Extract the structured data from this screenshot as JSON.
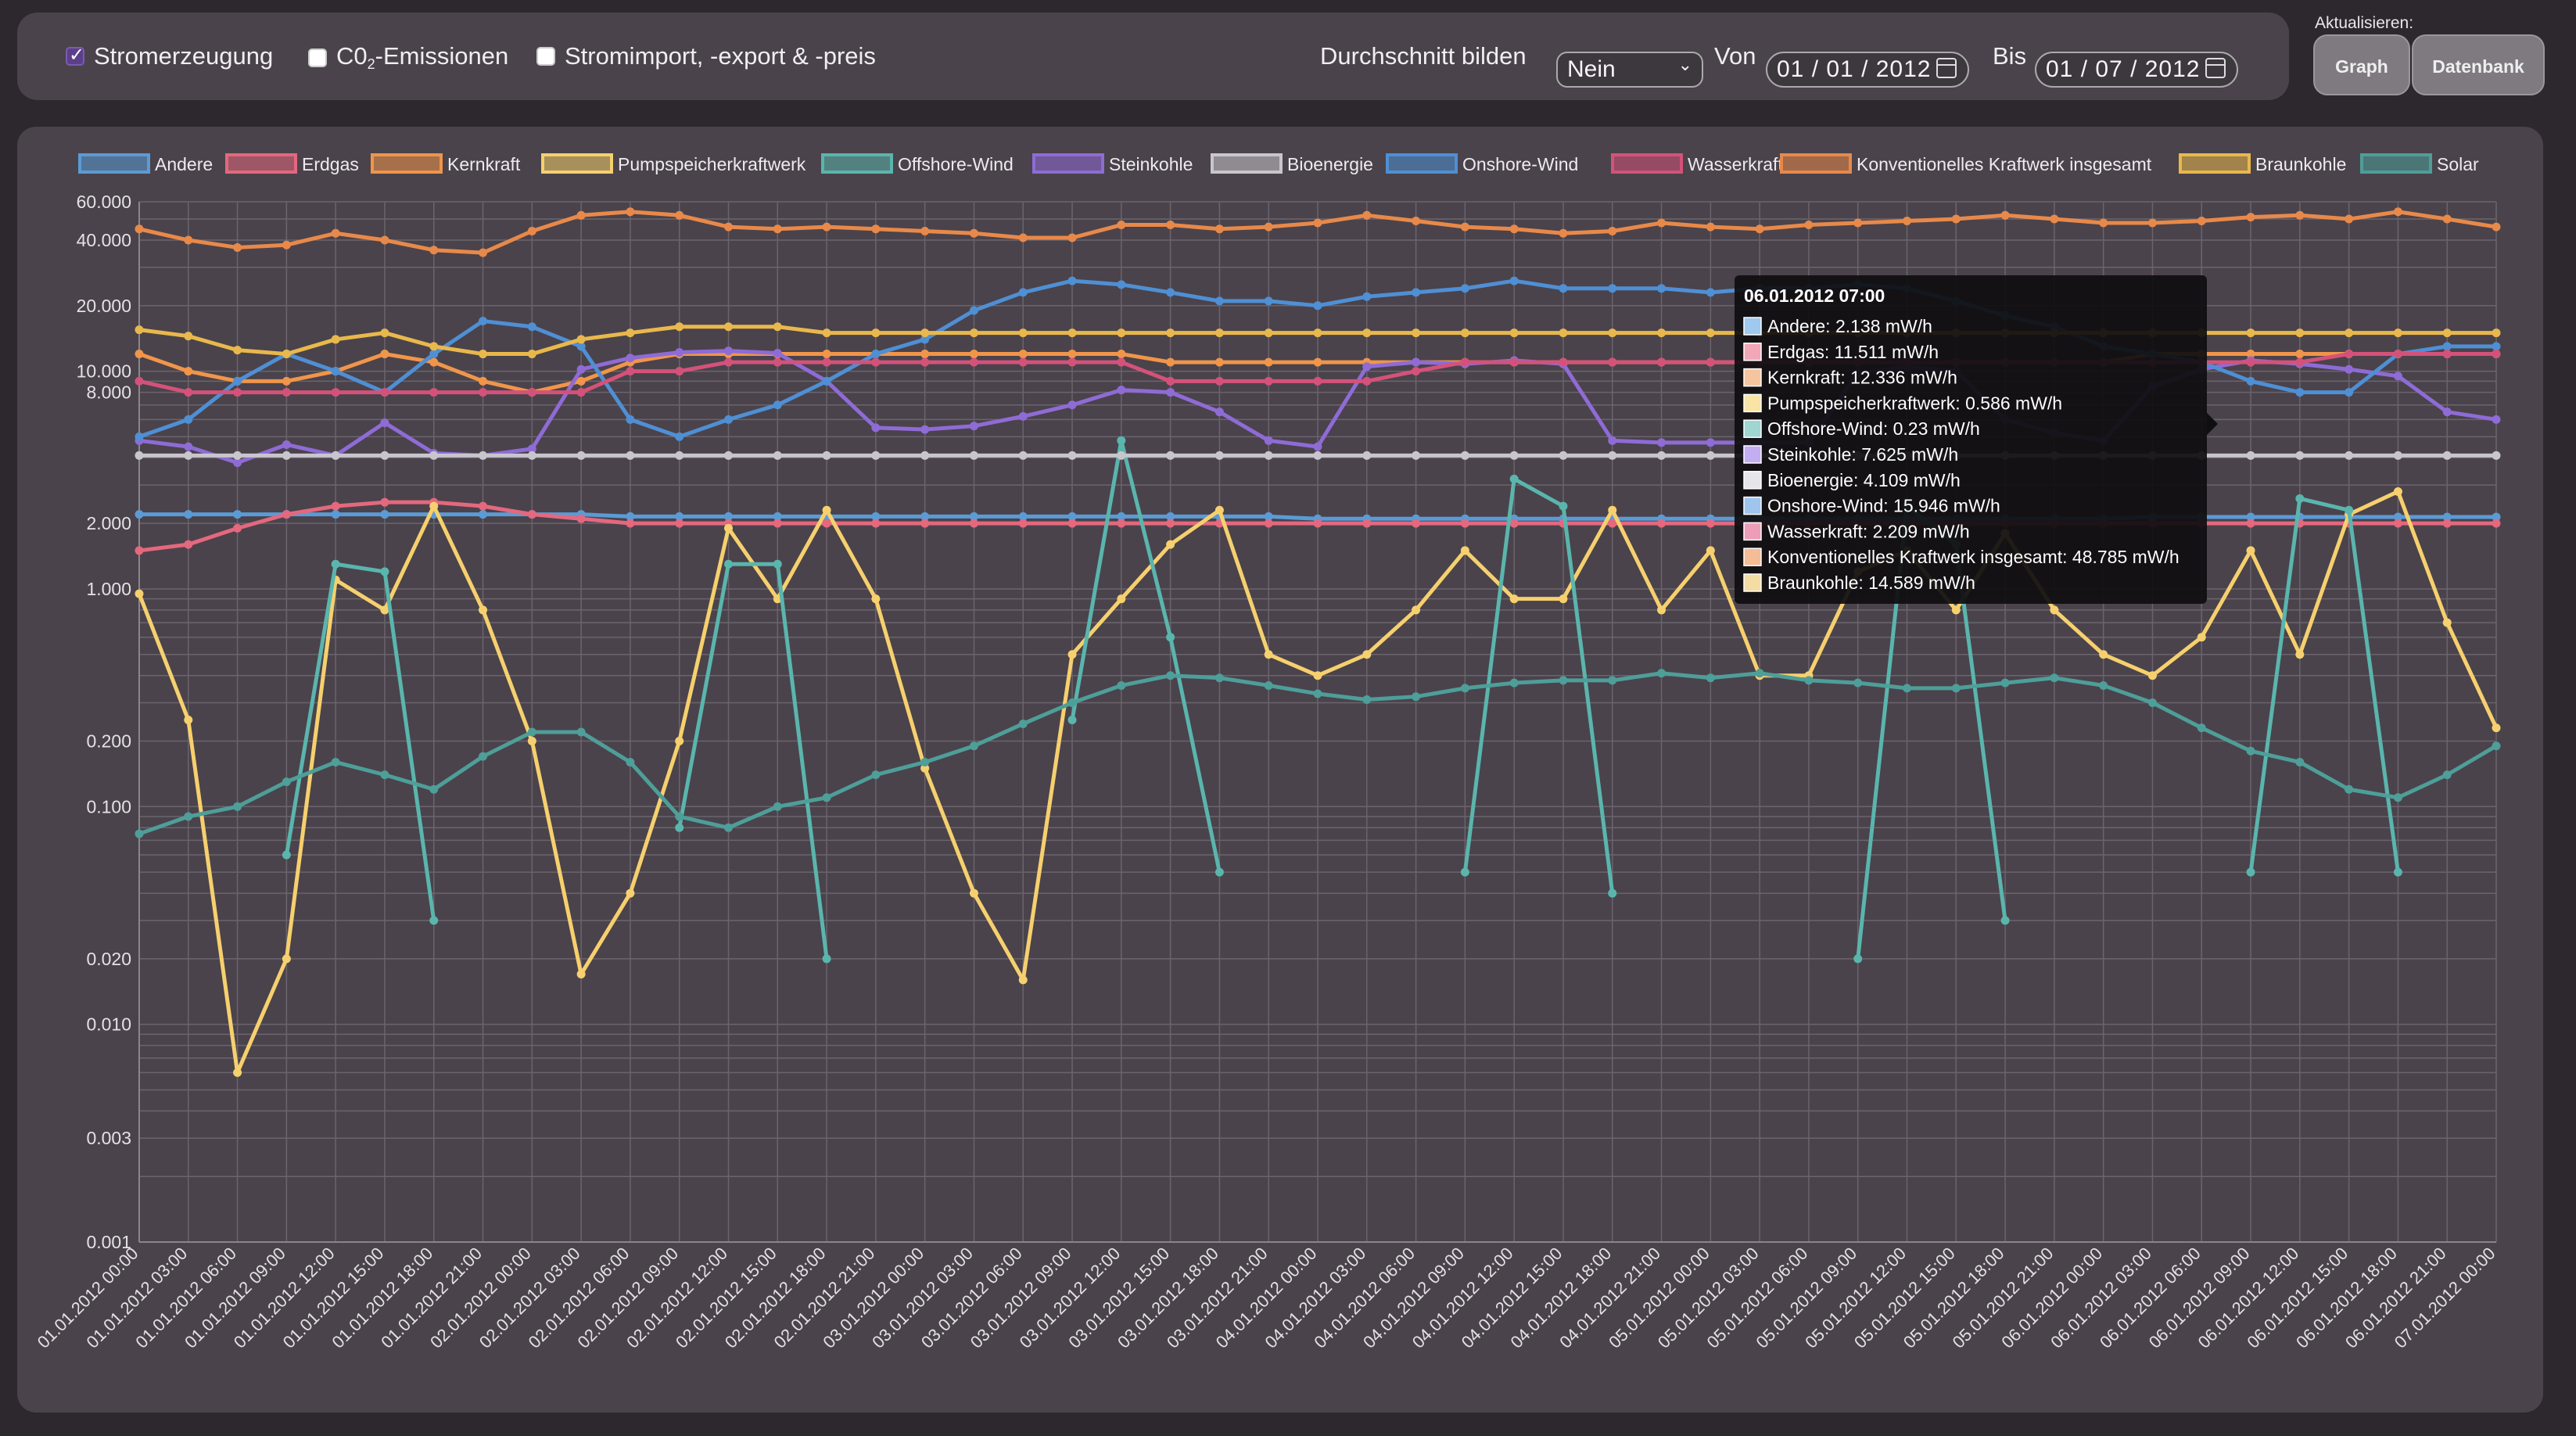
{
  "toolbar": {
    "checkboxes": [
      {
        "label_main": "Stromerzeugung",
        "label_sub": "",
        "label_rest": "",
        "checked": true
      },
      {
        "label_main": "C0",
        "label_sub": "2",
        "label_rest": "-Emissionen",
        "checked": false
      },
      {
        "label_main": "Stromimport, -export & -preis",
        "label_sub": "",
        "label_rest": "",
        "checked": false
      }
    ],
    "average_label": "Durchschnitt bilden",
    "average_value": "Nein",
    "from_label": "Von",
    "from_value": "01 / 01 / 2012",
    "to_label": "Bis",
    "to_value": "01 / 07 / 2012",
    "refresh_label": "Aktualisieren:",
    "graph_button": "Graph",
    "database_button": "Datenbank"
  },
  "chart_data": {
    "type": "line",
    "y_scale": "log",
    "ylim": [
      0.001,
      60
    ],
    "y_tick_labels": [
      "60.000",
      "40.000",
      "20.000",
      "10.000",
      "8.000",
      "2.000",
      "1.000",
      "0.200",
      "0.100",
      "0.020",
      "0.010",
      "0.003",
      "0.001"
    ],
    "y_tick_values": [
      60,
      40,
      20,
      10,
      8,
      2,
      1,
      0.2,
      0.1,
      0.02,
      0.01,
      0.003,
      0.001
    ],
    "x_tick_labels": [
      "01.01.2012 00:00",
      "01.01.2012 03:00",
      "01.01.2012 06:00",
      "01.01.2012 09:00",
      "01.01.2012 12:00",
      "01.01.2012 15:00",
      "01.01.2012 18:00",
      "01.01.2012 21:00",
      "02.01.2012 00:00",
      "02.01.2012 03:00",
      "02.01.2012 06:00",
      "02.01.2012 09:00",
      "02.01.2012 12:00",
      "02.01.2012 15:00",
      "02.01.2012 18:00",
      "02.01.2012 21:00",
      "03.01.2012 00:00",
      "03.01.2012 03:00",
      "03.01.2012 06:00",
      "03.01.2012 09:00",
      "03.01.2012 12:00",
      "03.01.2012 15:00",
      "03.01.2012 18:00",
      "03.01.2012 21:00",
      "04.01.2012 00:00",
      "04.01.2012 03:00",
      "04.01.2012 06:00",
      "04.01.2012 09:00",
      "04.01.2012 12:00",
      "04.01.2012 15:00",
      "04.01.2012 18:00",
      "04.01.2012 21:00",
      "05.01.2012 00:00",
      "05.01.2012 03:00",
      "05.01.2012 06:00",
      "05.01.2012 09:00",
      "05.01.2012 12:00",
      "05.01.2012 15:00",
      "05.01.2012 18:00",
      "05.01.2012 21:00",
      "06.01.2012 00:00",
      "06.01.2012 03:00",
      "06.01.2012 06:00",
      "06.01.2012 09:00",
      "06.01.2012 12:00",
      "06.01.2012 15:00",
      "06.01.2012 18:00",
      "06.01.2012 21:00",
      "07.01.2012 00:00"
    ],
    "grid": true,
    "legend_position": "top",
    "series": [
      {
        "name": "Andere",
        "color": "#5b9bd5",
        "values": [
          2.2,
          2.2,
          2.2,
          2.2,
          2.2,
          2.2,
          2.2,
          2.2,
          2.2,
          2.2,
          2.15,
          2.15,
          2.15,
          2.15,
          2.15,
          2.15,
          2.15,
          2.15,
          2.15,
          2.15,
          2.15,
          2.15,
          2.15,
          2.15,
          2.1,
          2.1,
          2.1,
          2.1,
          2.1,
          2.1,
          2.1,
          2.1,
          2.1,
          2.1,
          2.1,
          2.1,
          2.1,
          2.1,
          2.1,
          2.1,
          2.1,
          2.14,
          2.14,
          2.14,
          2.14,
          2.14,
          2.14,
          2.14,
          2.14
        ]
      },
      {
        "name": "Erdgas",
        "color": "#e4687e",
        "values": [
          1.5,
          1.6,
          1.9,
          2.2,
          2.4,
          2.5,
          2.5,
          2.4,
          2.2,
          2.1,
          2.0,
          2.0,
          2.0,
          2.0,
          2.0,
          2.0,
          2.0,
          2.0,
          2.0,
          2.0,
          2.0,
          2.0,
          2.0,
          2.0,
          2.0,
          2.0,
          2.0,
          2.0,
          2.0,
          2.0,
          2.0,
          2.0,
          2.0,
          2.0,
          2.0,
          2.0,
          2.0,
          2.0,
          2.0,
          2.0,
          2.0,
          2.0,
          2.0,
          2.0,
          2.0,
          2.0,
          2.0,
          2.0,
          2.0
        ]
      },
      {
        "name": "Kernkraft",
        "color": "#f0954a",
        "values": [
          12,
          10,
          9,
          9,
          10,
          12,
          11,
          9,
          8,
          9,
          11,
          12,
          12,
          12,
          12,
          12,
          12,
          12,
          12,
          12,
          12,
          11,
          11,
          11,
          11,
          11,
          11,
          11,
          11,
          11,
          11,
          11,
          11,
          11,
          11,
          11,
          11,
          11,
          11,
          11,
          11,
          12,
          12,
          12,
          12,
          12,
          12,
          12,
          12
        ]
      },
      {
        "name": "Pumpspeicherkraftwerk",
        "color": "#f6d06e",
        "values": [
          0.95,
          0.25,
          0.006,
          0.02,
          1.1,
          0.8,
          2.4,
          0.8,
          0.2,
          0.017,
          0.04,
          0.2,
          1.9,
          0.9,
          2.3,
          0.9,
          0.15,
          0.04,
          0.016,
          0.5,
          0.9,
          1.6,
          2.3,
          0.5,
          0.4,
          0.5,
          0.8,
          1.5,
          0.9,
          0.9,
          2.3,
          0.8,
          1.5,
          0.4,
          0.4,
          1.2,
          1.5,
          0.8,
          1.8,
          0.8,
          0.5,
          0.4,
          0.6,
          1.5,
          0.5,
          2.2,
          2.8,
          0.7,
          0.23
        ]
      },
      {
        "name": "Offshore-Wind",
        "color": "#5ab5ad",
        "values": [
          null,
          null,
          null,
          0.06,
          1.3,
          1.2,
          0.03,
          null,
          null,
          null,
          null,
          0.08,
          1.3,
          1.3,
          0.02,
          null,
          null,
          null,
          null,
          0.25,
          4.8,
          0.6,
          0.05,
          null,
          null,
          null,
          null,
          0.05,
          3.2,
          2.4,
          0.04,
          null,
          null,
          null,
          null,
          0.02,
          2.4,
          1.6,
          0.03,
          null,
          null,
          null,
          null,
          0.05,
          2.6,
          2.3,
          0.05,
          null,
          null
        ]
      },
      {
        "name": "Steinkohle",
        "color": "#8f6bd6",
        "values": [
          4.8,
          4.5,
          3.8,
          4.6,
          4.1,
          5.8,
          4.2,
          4.1,
          4.4,
          10.2,
          11.5,
          12.2,
          12.4,
          12.1,
          9.0,
          5.5,
          5.4,
          5.6,
          6.2,
          7.0,
          8.2,
          8.0,
          6.5,
          4.8,
          4.5,
          10.5,
          11.0,
          10.8,
          11.2,
          10.8,
          4.8,
          4.7,
          4.7,
          4.7,
          4.7,
          9.8,
          10.5,
          10.0,
          6.0,
          5.2,
          4.8,
          8.5,
          10.2,
          11.2,
          10.8,
          10.2,
          9.5,
          6.5,
          6.0
        ]
      },
      {
        "name": "Bioenergie",
        "color": "#c8c6cc",
        "values": [
          4.1,
          4.1,
          4.1,
          4.1,
          4.1,
          4.1,
          4.1,
          4.1,
          4.1,
          4.1,
          4.1,
          4.1,
          4.1,
          4.1,
          4.1,
          4.1,
          4.1,
          4.1,
          4.1,
          4.1,
          4.1,
          4.1,
          4.1,
          4.1,
          4.1,
          4.1,
          4.1,
          4.1,
          4.1,
          4.1,
          4.1,
          4.1,
          4.1,
          4.1,
          4.1,
          4.1,
          4.1,
          4.1,
          4.1,
          4.1,
          4.1,
          4.1,
          4.1,
          4.1,
          4.1,
          4.1,
          4.1,
          4.1,
          4.1
        ]
      },
      {
        "name": "Onshore-Wind",
        "color": "#4f8fd4",
        "values": [
          5,
          6,
          9,
          12,
          10,
          8,
          12,
          17,
          16,
          13,
          6,
          5,
          6,
          7,
          9,
          12,
          14,
          19,
          23,
          26,
          25,
          23,
          21,
          21,
          20,
          22,
          23,
          24,
          26,
          24,
          24,
          24,
          23,
          24,
          24,
          25,
          24,
          21,
          18,
          16,
          13,
          12,
          11,
          9,
          8,
          8,
          12,
          13,
          13
        ]
      },
      {
        "name": "Wasserkraft",
        "color": "#d4527a",
        "values": [
          9,
          8,
          8,
          8,
          8,
          8,
          8,
          8,
          8,
          8,
          10,
          10,
          11,
          11,
          11,
          11,
          11,
          11,
          11,
          11,
          11,
          9,
          9,
          9,
          9,
          9,
          10,
          11,
          11,
          11,
          11,
          11,
          11,
          11,
          11,
          11,
          11,
          11,
          11,
          11,
          11,
          11,
          11,
          11,
          11,
          12,
          12,
          12,
          12
        ]
      },
      {
        "name": "Konventionelles Kraftwerk insgesamt",
        "color": "#e8894a",
        "values": [
          45,
          40,
          37,
          38,
          43,
          40,
          36,
          35,
          44,
          52,
          54,
          52,
          46,
          45,
          46,
          45,
          44,
          43,
          41,
          41,
          47,
          47,
          45,
          46,
          48,
          52,
          49,
          46,
          45,
          43,
          44,
          48,
          46,
          45,
          47,
          48,
          49,
          50,
          52,
          50,
          48,
          48,
          49,
          51,
          52,
          50,
          54,
          50,
          46
        ]
      },
      {
        "name": "Braunkohle",
        "color": "#e9b84c",
        "values": [
          15.5,
          14.5,
          12.5,
          12,
          14,
          15,
          13,
          12,
          12,
          14,
          15,
          16,
          16,
          16,
          15,
          15,
          15,
          15,
          15,
          15,
          15,
          15,
          15,
          15,
          15,
          15,
          15,
          15,
          15,
          15,
          15,
          15,
          15,
          15,
          15,
          15,
          15,
          15,
          15,
          15,
          15,
          15,
          15,
          15,
          15,
          15,
          15,
          15,
          15
        ]
      },
      {
        "name": "Solar",
        "color": "#4e9e99",
        "values": [
          0.075,
          0.09,
          0.1,
          0.13,
          0.16,
          0.14,
          0.12,
          0.17,
          0.22,
          0.22,
          0.16,
          0.09,
          0.08,
          0.1,
          0.11,
          0.14,
          0.16,
          0.19,
          0.24,
          0.3,
          0.36,
          0.4,
          0.39,
          0.36,
          0.33,
          0.31,
          0.32,
          0.35,
          0.37,
          0.38,
          0.38,
          0.41,
          0.39,
          0.41,
          0.38,
          0.37,
          0.35,
          0.35,
          0.37,
          0.39,
          0.36,
          0.3,
          0.23,
          0.18,
          0.16,
          0.12,
          0.11,
          0.14,
          0.19
        ]
      }
    ],
    "tooltip": {
      "title": "06.01.2012 07:00",
      "lines": [
        {
          "text": "Andere: 2.138 mW/h",
          "color": "#9fc9ee"
        },
        {
          "text": "Erdgas: 11.511 mW/h",
          "color": "#f2a7b6"
        },
        {
          "text": "Kernkraft: 12.336 mW/h",
          "color": "#f6c59e"
        },
        {
          "text": "Pumpspeicherkraftwerk: 0.586 mW/h",
          "color": "#f9e3a5"
        },
        {
          "text": "Offshore-Wind: 0.23 mW/h",
          "color": "#9fd6d1"
        },
        {
          "text": "Steinkohle: 7.625 mW/h",
          "color": "#c2aef0"
        },
        {
          "text": "Bioenergie: 4.109 mW/h",
          "color": "#e6e5ea"
        },
        {
          "text": "Onshore-Wind: 15.946 mW/h",
          "color": "#9fc4ee"
        },
        {
          "text": "Wasserkraft: 2.209 mW/h",
          "color": "#ee9db8"
        },
        {
          "text": "Konventionelles Kraftwerk insgesamt: 48.785 mW/h",
          "color": "#f4bd96"
        },
        {
          "text": "Braunkohle: 14.589 mW/h",
          "color": "#f4dca2"
        }
      ]
    }
  }
}
